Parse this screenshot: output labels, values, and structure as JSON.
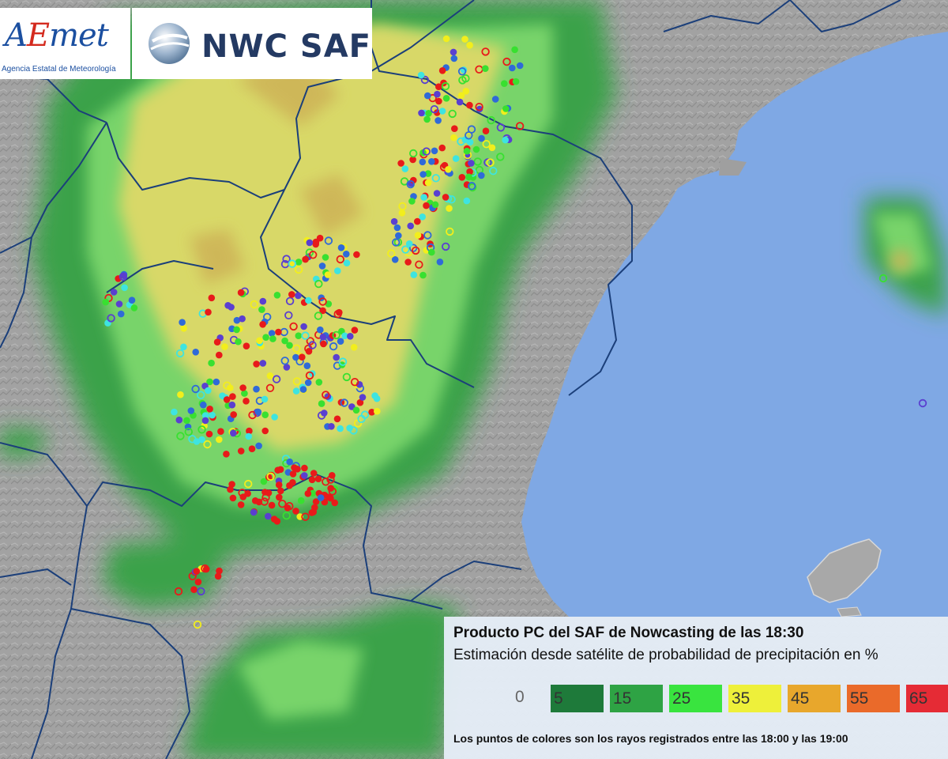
{
  "logos": {
    "aemet_word": "AEmet",
    "aemet_subtitle": "Agencia Estatal de Meteorología",
    "nwc_saf": "NWC SAF"
  },
  "legend": {
    "title": "Producto PC del SAF de Nowcasting de las 18:30",
    "subtitle": "Estimación desde satélite de probabilidad de precipitación en %",
    "zero_label": "0",
    "scale": [
      {
        "label": "5",
        "color": "#1e7a3a"
      },
      {
        "label": "15",
        "color": "#2ea344"
      },
      {
        "label": "25",
        "color": "#39e43f"
      },
      {
        "label": "35",
        "color": "#eef03a"
      },
      {
        "label": "45",
        "color": "#e8a72c"
      },
      {
        "label": "55",
        "color": "#ea6a2a"
      },
      {
        "label": "65",
        "color": "#e52b35"
      }
    ],
    "note": "Los puntos de colores son los rayos registrados entre las 18:00 y las 19:00"
  },
  "map_colors": {
    "sea": "#7fa8e4",
    "land": "#9c9c9c",
    "borders": "#1b3f7a"
  },
  "lightning_colors": [
    "#e81a1a",
    "#f2ee1c",
    "#38e030",
    "#3ee4e0",
    "#2f6ad8",
    "#5a3fd0"
  ]
}
